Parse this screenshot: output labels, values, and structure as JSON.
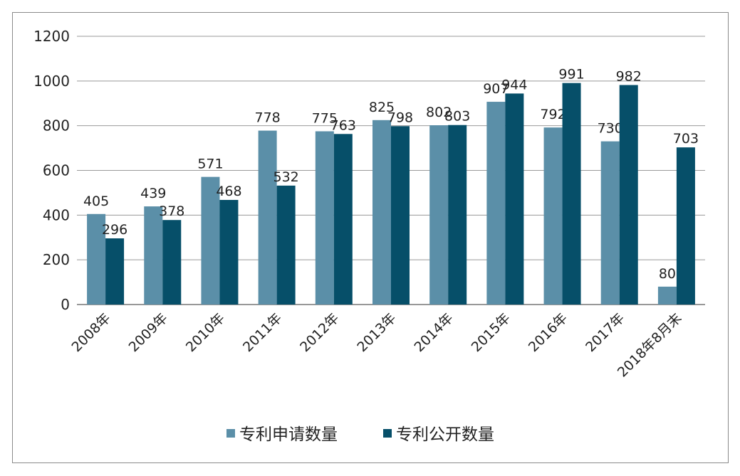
{
  "chart_data": {
    "type": "bar",
    "categories": [
      "2008年",
      "2009年",
      "2010年",
      "2011年",
      "2012年",
      "2013年",
      "2014年",
      "2015年",
      "2016年",
      "2017年",
      "2018年8月末"
    ],
    "series": [
      {
        "name": "专利申请数量",
        "color": "#5b8fa8",
        "values": [
          405,
          439,
          571,
          778,
          775,
          825,
          802,
          907,
          792,
          730,
          80
        ]
      },
      {
        "name": "专利公开数量",
        "color": "#064f69",
        "values": [
          296,
          378,
          468,
          532,
          763,
          798,
          803,
          944,
          991,
          982,
          703
        ]
      }
    ],
    "ylim": [
      0,
      1200
    ],
    "yticks": [
      0,
      200,
      400,
      600,
      800,
      1000,
      1200
    ],
    "grid": true,
    "legend": "bottom",
    "xlabel": "",
    "ylabel": "",
    "title": ""
  }
}
